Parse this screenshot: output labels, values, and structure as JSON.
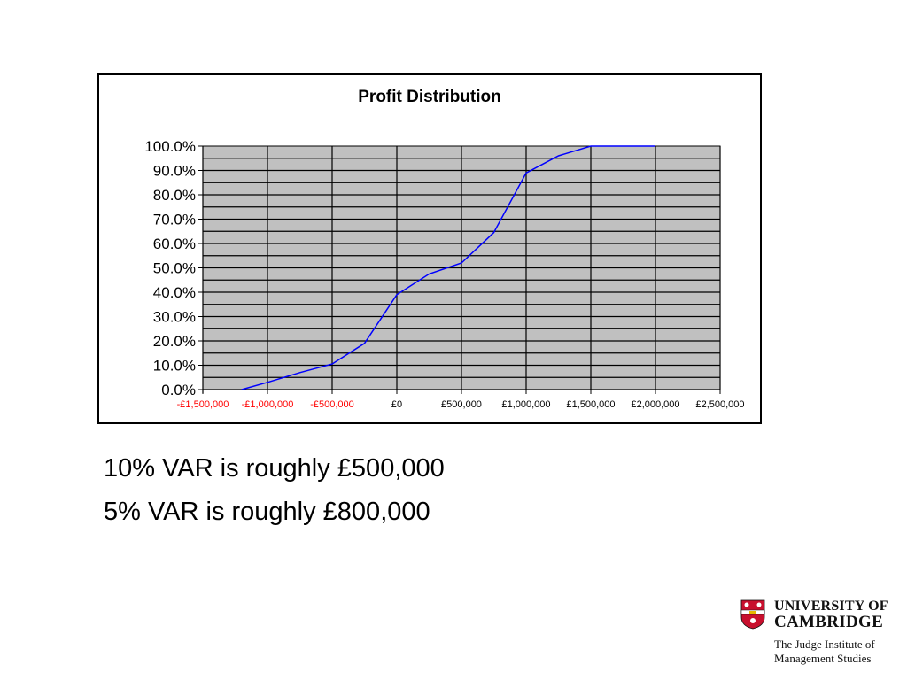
{
  "chart_data": {
    "type": "line",
    "title": "Profit Distribution",
    "xlabel": "",
    "ylabel": "",
    "x_tick_labels": [
      "-£1,500,000",
      "-£1,000,000",
      "-£500,000",
      "£0",
      "£500,000",
      "£1,000,000",
      "£1,500,000",
      "£2,000,000",
      "£2,500,000"
    ],
    "x_tick_values": [
      -1500000,
      -1000000,
      -500000,
      0,
      500000,
      1000000,
      1500000,
      2000000,
      2500000
    ],
    "negative_tick_color": "#ff0000",
    "y_tick_labels": [
      "0.0%",
      "10.0%",
      "20.0%",
      "30.0%",
      "40.0%",
      "50.0%",
      "60.0%",
      "70.0%",
      "80.0%",
      "90.0%",
      "100.0%"
    ],
    "xlim": [
      -1500000,
      2500000
    ],
    "ylim": [
      0,
      1
    ],
    "grid": true,
    "plot_background": "#c0c0c0",
    "series": [
      {
        "color": "#0000ff",
        "x": [
          -1200000,
          -1000000,
          -750000,
          -500000,
          -250000,
          0,
          250000,
          500000,
          750000,
          1000000,
          1250000,
          1500000,
          1750000,
          2000000
        ],
        "y": [
          0.0,
          0.03,
          0.07,
          0.105,
          0.19,
          0.39,
          0.475,
          0.52,
          0.645,
          0.89,
          0.96,
          1.0,
          1.0,
          1.0
        ]
      }
    ]
  },
  "text": {
    "bullet1": "10% VAR is roughly £500,000",
    "bullet2": "5% VAR is roughly £800,000"
  },
  "logo": {
    "line1": "UNIVERSITY OF",
    "line2": "CAMBRIDGE",
    "line3": "The Judge Institute of",
    "line4": "Management Studies",
    "crest_red": "#c8102e",
    "crest_gold": "#e6b800"
  }
}
